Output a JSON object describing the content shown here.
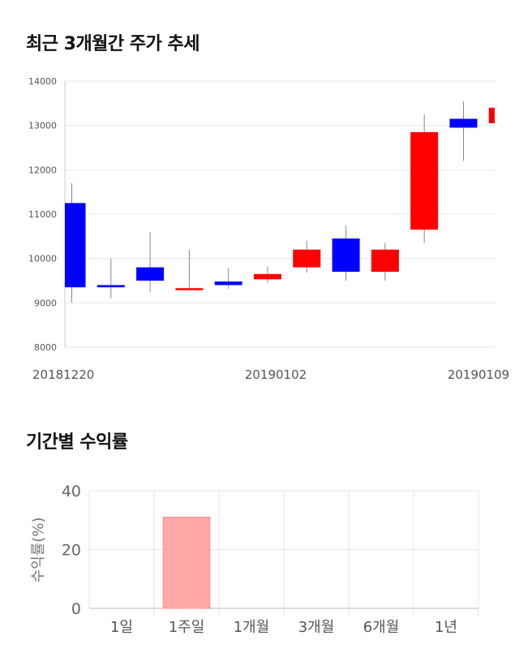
{
  "titles": {
    "trend": "최근 3개월간 주가 추세",
    "returns": "기간별 수익률"
  },
  "chart_data": [
    {
      "type": "candlestick",
      "title": "최근 3개월간 주가 추세",
      "ylim": [
        8000,
        14000
      ],
      "y_ticks": [
        8000,
        9000,
        10000,
        11000,
        12000,
        13000,
        14000
      ],
      "x_tick_labels": [
        "20181220",
        "20190102",
        "20190109"
      ],
      "grid": true,
      "candles": [
        {
          "open": 11250,
          "close": 9350,
          "high": 11700,
          "low": 9000,
          "dir": "down"
        },
        {
          "open": 9400,
          "close": 9350,
          "high": 10000,
          "low": 9100,
          "dir": "down"
        },
        {
          "open": 9800,
          "close": 9500,
          "high": 10600,
          "low": 9250,
          "dir": "down"
        },
        {
          "open": 9300,
          "close": 9330,
          "high": 10200,
          "low": 9300,
          "dir": "up"
        },
        {
          "open": 9480,
          "close": 9400,
          "high": 9780,
          "low": 9320,
          "dir": "down"
        },
        {
          "open": 9530,
          "close": 9650,
          "high": 9820,
          "low": 9450,
          "dir": "up"
        },
        {
          "open": 9800,
          "close": 10200,
          "high": 10400,
          "low": 9680,
          "dir": "up"
        },
        {
          "open": 10450,
          "close": 9700,
          "high": 10750,
          "low": 9500,
          "dir": "down"
        },
        {
          "open": 9700,
          "close": 10200,
          "high": 10350,
          "low": 9500,
          "dir": "up"
        },
        {
          "open": 10650,
          "close": 12850,
          "high": 13250,
          "low": 10350,
          "dir": "up"
        },
        {
          "open": 13150,
          "close": 12950,
          "high": 13550,
          "low": 12200,
          "dir": "down"
        },
        {
          "open": 13050,
          "close": 13400,
          "high": 13700,
          "low": 12500,
          "dir": "up"
        }
      ],
      "colors": {
        "up": "#ff0000",
        "down": "#0000ff",
        "wick": "#888888",
        "grid": "#e6e6e6"
      }
    },
    {
      "type": "bar",
      "title": "기간별 수익률",
      "categories": [
        "1일",
        "1주일",
        "1개월",
        "3개월",
        "6개월",
        "1년"
      ],
      "values": [
        null,
        31,
        null,
        null,
        null,
        null
      ],
      "ylabel": "수익률(%)",
      "ylim": [
        0,
        40
      ],
      "y_ticks": [
        0,
        20,
        40
      ],
      "grid": true,
      "colors": {
        "bar": "#ffa8a8",
        "bar_stroke": "#ff8c8c",
        "grid": "#e6e6ee"
      }
    }
  ]
}
